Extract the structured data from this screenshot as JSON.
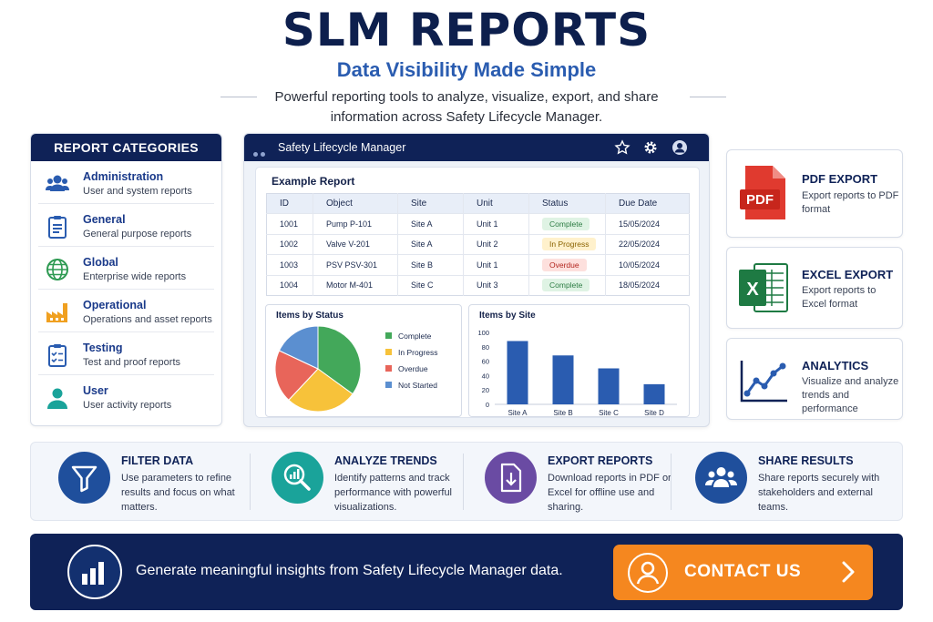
{
  "header": {
    "title": "SLM REPORTS",
    "subtitle": "Data Visibility Made Simple",
    "description": "Powerful reporting tools to analyze, visualize, export, and share information across Safety Lifecycle Manager."
  },
  "categories": {
    "heading": "REPORT CATEGORIES",
    "items": [
      {
        "name": "Administration",
        "desc": "User and system reports",
        "icon": "users-icon"
      },
      {
        "name": "General",
        "desc": "General purpose reports",
        "icon": "clipboard-icon"
      },
      {
        "name": "Global",
        "desc": "Enterprise wide reports",
        "icon": "globe-icon"
      },
      {
        "name": "Operational",
        "desc": "Operations and asset reports",
        "icon": "factory-icon"
      },
      {
        "name": "Testing",
        "desc": "Test and proof reports",
        "icon": "checklist-icon"
      },
      {
        "name": "User",
        "desc": "User activity reports",
        "icon": "user-icon"
      }
    ]
  },
  "app": {
    "title": "Safety Lifecycle Manager",
    "report_title": "Example Report",
    "columns": [
      "ID",
      "Object",
      "Site",
      "Unit",
      "Status",
      "Due Date"
    ],
    "rows": [
      {
        "id": "1001",
        "object": "Pump P-101",
        "site": "Site A",
        "unit": "Unit 1",
        "status": "Complete",
        "due": "15/05/2024"
      },
      {
        "id": "1002",
        "object": "Valve V-201",
        "site": "Site A",
        "unit": "Unit 2",
        "status": "In Progress",
        "due": "22/05/2024"
      },
      {
        "id": "1003",
        "object": "PSV PSV-301",
        "site": "Site B",
        "unit": "Unit 1",
        "status": "Overdue",
        "due": "10/05/2024"
      },
      {
        "id": "1004",
        "object": "Motor M-401",
        "site": "Site C",
        "unit": "Unit 3",
        "status": "Complete",
        "due": "18/05/2024"
      }
    ],
    "status_colors": {
      "Complete": [
        "#dff3e4",
        "#2e7d45"
      ],
      "In Progress": [
        "#fff1cc",
        "#8a6300"
      ],
      "Overdue": [
        "#fde0dd",
        "#b3261e"
      ]
    }
  },
  "chart_data": [
    {
      "type": "pie",
      "title": "Items by Status",
      "labels": [
        "Complete",
        "In Progress",
        "Overdue",
        "Not Started"
      ],
      "values": [
        35,
        27,
        20,
        18
      ],
      "colors": [
        "#43a85a",
        "#f7c23a",
        "#e8655a",
        "#5b8fd0"
      ]
    },
    {
      "type": "bar",
      "title": "Items by Site",
      "categories": [
        "Site A",
        "Site B",
        "Site C",
        "Site D"
      ],
      "values": [
        88,
        68,
        50,
        28
      ],
      "ylim": [
        0,
        100
      ],
      "yticks": [
        0,
        20,
        40,
        60,
        80,
        100
      ],
      "color": "#2a5cb0"
    }
  ],
  "exports": [
    {
      "name": "PDF EXPORT",
      "desc": "Export reports to PDF format",
      "icon": "pdf-file-icon"
    },
    {
      "name": "EXCEL EXPORT",
      "desc": "Export reports to Excel format",
      "icon": "excel-file-icon"
    },
    {
      "name": "ANALYTICS",
      "desc": "Visualize and analyze trends and performance",
      "icon": "trend-line-icon"
    }
  ],
  "features": [
    {
      "name": "FILTER DATA",
      "desc": "Use parameters to refine results and focus on what matters.",
      "color": "#1f4f9c",
      "icon": "funnel-icon"
    },
    {
      "name": "ANALYZE TRENDS",
      "desc": "Identify patterns and track performance with powerful visualizations.",
      "color": "#1aa39a",
      "icon": "magnifier-chart-icon"
    },
    {
      "name": "EXPORT REPORTS",
      "desc": "Download reports in PDF or Excel for offline use and sharing.",
      "color": "#6a4ba3",
      "icon": "download-file-icon"
    },
    {
      "name": "SHARE RESULTS",
      "desc": "Share reports securely with stakeholders and external teams.",
      "color": "#1f4f9c",
      "icon": "group-icon"
    }
  ],
  "banner": {
    "text": "Generate meaningful insights from Safety Lifecycle Manager data.",
    "cta_label": "CONTACT US",
    "accent": "#f5871f"
  }
}
